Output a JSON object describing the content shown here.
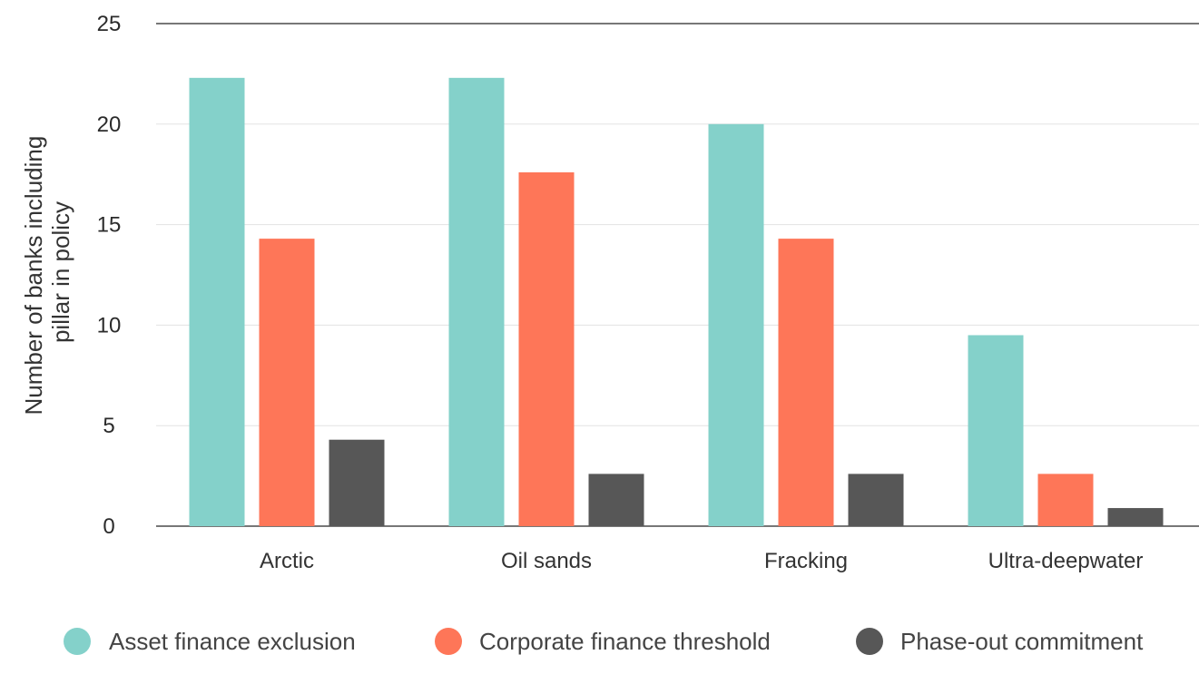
{
  "chart_data": {
    "type": "bar",
    "title": "",
    "xlabel": "",
    "ylabel_lines": [
      "Number of banks including",
      "pillar in policy"
    ],
    "ylim": [
      0,
      25
    ],
    "yticks": [
      0,
      5,
      10,
      15,
      20,
      25
    ],
    "grid": true,
    "legend_position": "bottom",
    "categories": [
      "Arctic",
      "Oil sands",
      "Fracking",
      "Ultra-deepwater"
    ],
    "series": [
      {
        "name": "Asset finance exclusion",
        "color": "#84d1ca",
        "values": [
          22.3,
          22.3,
          20,
          9.5
        ]
      },
      {
        "name": "Corporate finance threshold",
        "color": "#fe7658",
        "values": [
          14.3,
          17.6,
          14.3,
          2.6
        ]
      },
      {
        "name": "Phase-out commitment",
        "color": "#575757",
        "values": [
          4.3,
          2.6,
          2.6,
          0.9
        ]
      }
    ]
  }
}
